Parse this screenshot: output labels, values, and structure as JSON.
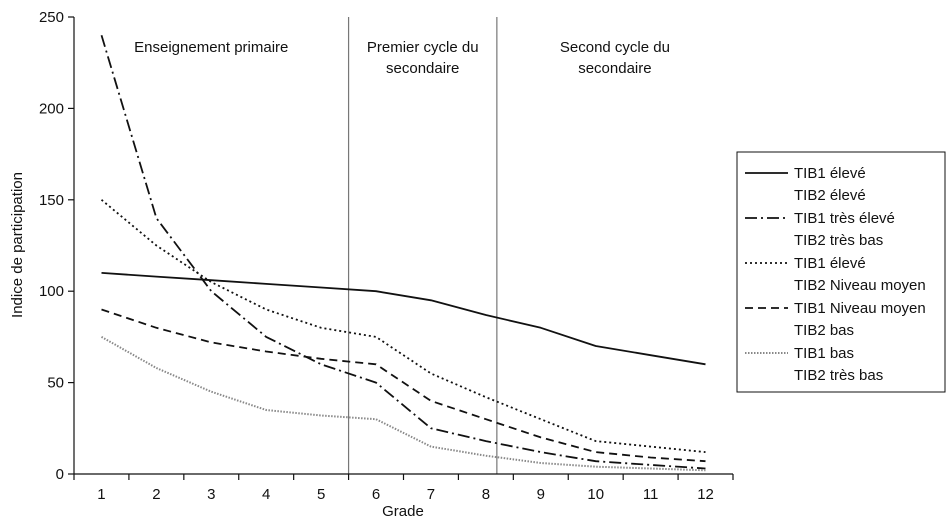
{
  "chart_data": {
    "type": "line",
    "xlabel": "Grade",
    "ylabel": "Indice de participation",
    "x": [
      1,
      2,
      3,
      4,
      5,
      6,
      7,
      8,
      9,
      10,
      11,
      12
    ],
    "xlim": [
      0.5,
      12.5
    ],
    "ylim": [
      0,
      250
    ],
    "yticks": [
      0,
      50,
      100,
      150,
      200,
      250
    ],
    "grid": false,
    "legend_position": "right",
    "sections": [
      {
        "label_lines": [
          "Enseignement primaire"
        ],
        "start": 0.5,
        "end": 5.5
      },
      {
        "label_lines": [
          "Premier cycle du",
          "secondaire"
        ],
        "start": 5.5,
        "end": 8.2
      },
      {
        "label_lines": [
          "Second cycle du",
          "secondaire"
        ],
        "start": 8.2,
        "end": 12.5
      }
    ],
    "dividers": [
      5.5,
      8.2
    ],
    "series": [
      {
        "name_lines": [
          "TIB1 élevé",
          "TIB2 élevé"
        ],
        "dash": "solid",
        "color": "#111111",
        "values": [
          110,
          108,
          106,
          104,
          102,
          100,
          95,
          87,
          80,
          70,
          65,
          60
        ]
      },
      {
        "name_lines": [
          "TIB1 très élevé",
          "TIB2 très bas"
        ],
        "dash": "dashdot",
        "color": "#111111",
        "values": [
          240,
          140,
          100,
          75,
          60,
          50,
          25,
          18,
          12,
          7,
          5,
          3
        ]
      },
      {
        "name_lines": [
          "TIB1 élevé",
          "TIB2 Niveau moyen"
        ],
        "dash": "dotted",
        "color": "#111111",
        "values": [
          150,
          125,
          105,
          90,
          80,
          75,
          55,
          42,
          30,
          18,
          15,
          12
        ]
      },
      {
        "name_lines": [
          "TIB1 Niveau moyen",
          "TIB2 bas"
        ],
        "dash": "dashed",
        "color": "#111111",
        "values": [
          90,
          80,
          72,
          67,
          63,
          60,
          40,
          30,
          20,
          12,
          9,
          7
        ]
      },
      {
        "name_lines": [
          "TIB1 bas",
          "TIB2 très bas"
        ],
        "dash": "dotted-light",
        "color": "#888888",
        "values": [
          75,
          58,
          45,
          35,
          32,
          30,
          15,
          10,
          6,
          4,
          3,
          2
        ]
      }
    ]
  }
}
